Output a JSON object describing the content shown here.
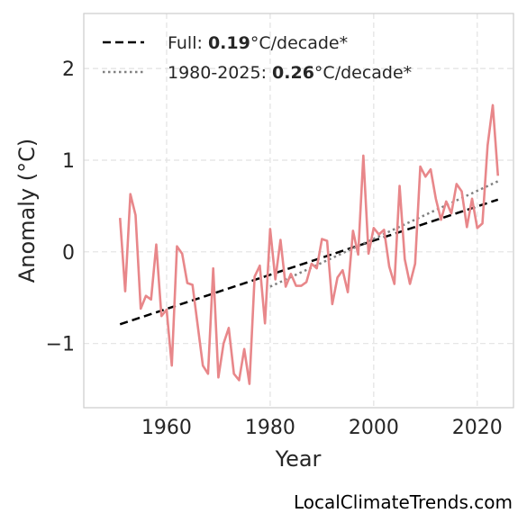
{
  "chart_data": {
    "type": "line",
    "xlabel": "Year",
    "ylabel": "Anomaly (°C)",
    "xlim": [
      1944,
      2027
    ],
    "ylim": [
      -1.7,
      2.6
    ],
    "xticks": [
      1960,
      1980,
      2000,
      2020
    ],
    "xtick_labels": [
      "1960",
      "1980",
      "2000",
      "2020"
    ],
    "yticks": [
      -1,
      0,
      1,
      2
    ],
    "ytick_labels": [
      "−1",
      "0",
      "1",
      "2"
    ],
    "grid": true,
    "legend_position": "top-left",
    "colors": {
      "series": "#e8878a",
      "full_trend": "#000000",
      "recent_trend": "#808080",
      "grid": "#e2e2e2",
      "frame": "#cccccc"
    },
    "series": [
      {
        "x": [
          1951,
          1952,
          1953,
          1954,
          1955,
          1956,
          1957,
          1958,
          1959,
          1960,
          1961,
          1962,
          1963,
          1964,
          1965,
          1966,
          1967,
          1968,
          1969,
          1970,
          1971,
          1972,
          1973,
          1974,
          1975,
          1976,
          1977,
          1978,
          1979,
          1980,
          1981,
          1982,
          1983,
          1984,
          1985,
          1986,
          1987,
          1988,
          1989,
          1990,
          1991,
          1992,
          1993,
          1994,
          1995,
          1996,
          1997,
          1998,
          1999,
          2000,
          2001,
          2002,
          2003,
          2004,
          2005,
          2006,
          2007,
          2008,
          2009,
          2010,
          2011,
          2012,
          2013,
          2014,
          2015,
          2016,
          2017,
          2018,
          2019,
          2020,
          2021,
          2022,
          2023,
          2024
        ],
        "values": [
          0.37,
          -0.43,
          0.63,
          0.4,
          -0.62,
          -0.48,
          -0.52,
          0.08,
          -0.7,
          -0.63,
          -1.24,
          0.06,
          -0.02,
          -0.34,
          -0.36,
          -0.8,
          -1.24,
          -1.33,
          -0.18,
          -1.37,
          -1.0,
          -0.83,
          -1.33,
          -1.4,
          -1.06,
          -1.44,
          -0.27,
          -0.15,
          -0.78,
          0.25,
          -0.3,
          0.13,
          -0.38,
          -0.24,
          -0.37,
          -0.37,
          -0.33,
          -0.13,
          -0.18,
          0.14,
          0.12,
          -0.57,
          -0.28,
          -0.2,
          -0.44,
          0.23,
          -0.03,
          1.05,
          -0.02,
          0.26,
          0.19,
          0.24,
          -0.16,
          -0.35,
          0.72,
          -0.08,
          -0.35,
          -0.13,
          0.93,
          0.82,
          0.9,
          0.58,
          0.35,
          0.55,
          0.42,
          0.74,
          0.66,
          0.27,
          0.58,
          0.26,
          0.31,
          1.16,
          1.6,
          0.83
        ]
      }
    ],
    "trends": [
      {
        "name": "Full",
        "rate": "0.19",
        "suffix": "°C/decade*",
        "style": "dashed",
        "x": [
          1951,
          2024
        ],
        "y": [
          -0.79,
          0.57
        ]
      },
      {
        "name": "1980-2025",
        "rate": "0.26",
        "suffix": "°C/decade*",
        "style": "dotted",
        "x": [
          1980,
          2024
        ],
        "y": [
          -0.38,
          0.77
        ]
      }
    ]
  },
  "source": "LocalClimateTrends.com"
}
